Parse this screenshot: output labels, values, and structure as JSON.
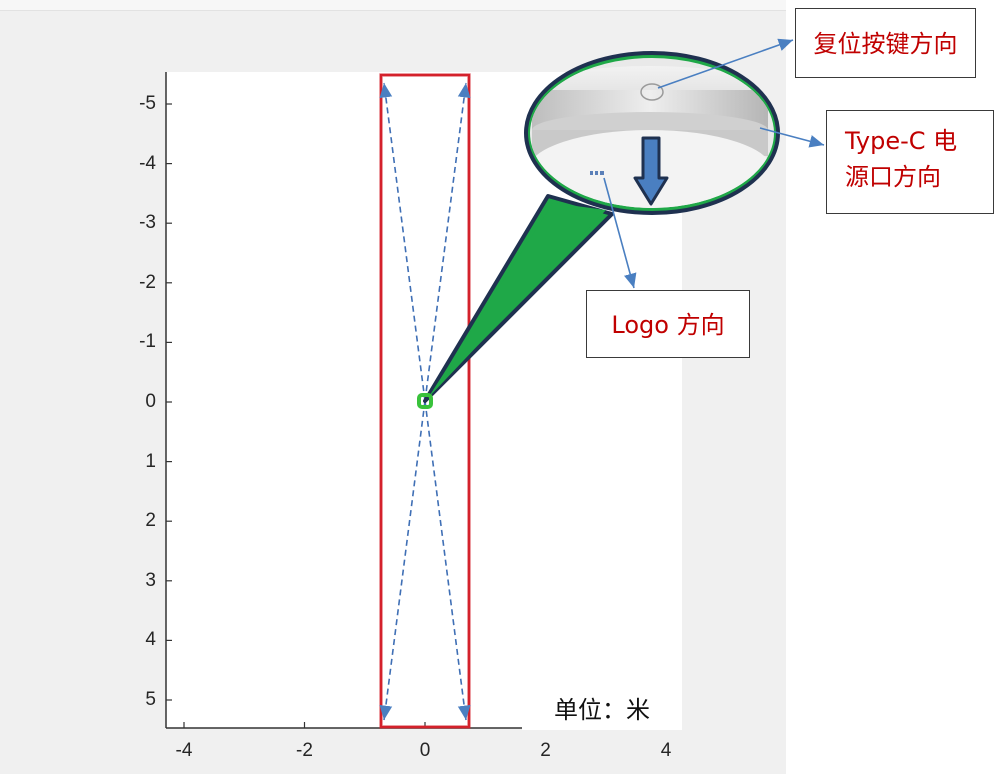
{
  "axes": {
    "y_ticks": [
      "-5",
      "-4",
      "-3",
      "-2",
      "-1",
      "0",
      "1",
      "2",
      "3",
      "4",
      "5"
    ],
    "x_ticks": [
      "-4",
      "-2",
      "0",
      "2",
      "4"
    ]
  },
  "unit_label": "单位：米",
  "callouts": {
    "reset": "复位按键方向",
    "typec_line1": "Type-C 电",
    "typec_line2": "源口方向",
    "logo": "Logo 方向"
  },
  "colors": {
    "detection_zone": "#d4212b",
    "dashed_lines": "#3f6fb5",
    "bubble": "#1fa848",
    "arrows": "#4a7fc1",
    "callout_text": "#c00000"
  },
  "icons": {
    "sensor": "ceiling-sensor-icon",
    "origin": "origin-marker-icon",
    "direction_arrow": "down-arrow-icon"
  }
}
